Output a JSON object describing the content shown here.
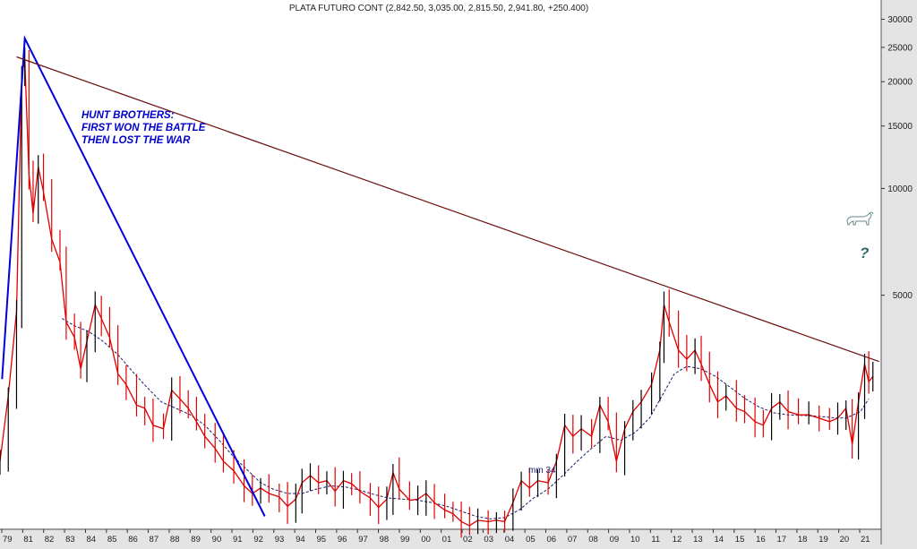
{
  "chart_data": {
    "type": "line",
    "title": "PLATA FUTURO CONT (2,842.50, 3,035.00, 2,815.50, 2,941.80, +250.400)",
    "scale": "log",
    "grid": false,
    "ylim": [
      1100,
      34000
    ],
    "y_ticks": [
      5000,
      10000,
      15000,
      20000,
      25000,
      30000
    ],
    "y_tick_labels": [
      "5000",
      "10000",
      "15000",
      "20000",
      "25000",
      "30000"
    ],
    "x_tick_labels": [
      "79",
      "81",
      "82",
      "83",
      "84",
      "85",
      "86",
      "87",
      "88",
      "89",
      "90",
      "91",
      "92",
      "93",
      "94",
      "95",
      "96",
      "97",
      "98",
      "99",
      "00",
      "01",
      "02",
      "03",
      "04",
      "05",
      "06",
      "07",
      "08",
      "09",
      "10",
      "11",
      "12",
      "13",
      "14",
      "15",
      "16",
      "17",
      "18",
      "19",
      "20",
      "21"
    ],
    "x_range": [
      1979.0,
      2021.6
    ],
    "series": [
      {
        "role": "price",
        "color": "#e00000",
        "points": [
          [
            1979.0,
            1700
          ],
          [
            1979.4,
            2600
          ],
          [
            1979.8,
            4500
          ],
          [
            1980.05,
            21000
          ],
          [
            1980.2,
            23000
          ],
          [
            1980.4,
            11000
          ],
          [
            1980.6,
            8500
          ],
          [
            1980.85,
            11500
          ],
          [
            1981.1,
            9800
          ],
          [
            1981.5,
            7200
          ],
          [
            1981.9,
            6200
          ],
          [
            1982.2,
            4200
          ],
          [
            1982.6,
            3800
          ],
          [
            1982.9,
            3100
          ],
          [
            1983.2,
            3700
          ],
          [
            1983.6,
            4700
          ],
          [
            1983.9,
            4300
          ],
          [
            1984.3,
            3800
          ],
          [
            1984.7,
            3000
          ],
          [
            1985.1,
            2800
          ],
          [
            1985.6,
            2450
          ],
          [
            1986.0,
            2400
          ],
          [
            1986.4,
            2150
          ],
          [
            1986.9,
            2100
          ],
          [
            1987.3,
            2700
          ],
          [
            1987.7,
            2550
          ],
          [
            1988.1,
            2400
          ],
          [
            1988.5,
            2200
          ],
          [
            1988.9,
            2000
          ],
          [
            1989.4,
            1850
          ],
          [
            1989.8,
            1700
          ],
          [
            1990.3,
            1600
          ],
          [
            1990.8,
            1450
          ],
          [
            1991.2,
            1380
          ],
          [
            1991.6,
            1430
          ],
          [
            1992.0,
            1380
          ],
          [
            1992.5,
            1350
          ],
          [
            1992.9,
            1270
          ],
          [
            1993.3,
            1330
          ],
          [
            1993.6,
            1480
          ],
          [
            1994.0,
            1550
          ],
          [
            1994.4,
            1480
          ],
          [
            1994.8,
            1500
          ],
          [
            1995.2,
            1400
          ],
          [
            1995.6,
            1500
          ],
          [
            1996.0,
            1470
          ],
          [
            1996.4,
            1400
          ],
          [
            1996.9,
            1340
          ],
          [
            1997.3,
            1260
          ],
          [
            1997.7,
            1330
          ],
          [
            1998.0,
            1580
          ],
          [
            1998.3,
            1420
          ],
          [
            1998.8,
            1320
          ],
          [
            1999.2,
            1330
          ],
          [
            1999.6,
            1380
          ],
          [
            2000.0,
            1300
          ],
          [
            2000.5,
            1240
          ],
          [
            2000.9,
            1210
          ],
          [
            2001.3,
            1150
          ],
          [
            2001.7,
            1120
          ],
          [
            2002.1,
            1160
          ],
          [
            2002.6,
            1150
          ],
          [
            2003.0,
            1160
          ],
          [
            2003.4,
            1150
          ],
          [
            2003.8,
            1300
          ],
          [
            2004.2,
            1500
          ],
          [
            2004.6,
            1430
          ],
          [
            2005.0,
            1500
          ],
          [
            2005.5,
            1480
          ],
          [
            2005.9,
            1700
          ],
          [
            2006.3,
            2150
          ],
          [
            2006.7,
            2000
          ],
          [
            2007.1,
            2100
          ],
          [
            2007.6,
            2000
          ],
          [
            2008.0,
            2450
          ],
          [
            2008.4,
            2200
          ],
          [
            2008.8,
            1700
          ],
          [
            2009.2,
            2100
          ],
          [
            2009.6,
            2350
          ],
          [
            2010.0,
            2500
          ],
          [
            2010.5,
            2800
          ],
          [
            2010.9,
            3500
          ],
          [
            2011.1,
            4700
          ],
          [
            2011.35,
            4200
          ],
          [
            2011.8,
            3500
          ],
          [
            2012.2,
            3300
          ],
          [
            2012.6,
            3500
          ],
          [
            2012.9,
            3200
          ],
          [
            2013.3,
            2800
          ],
          [
            2013.7,
            2500
          ],
          [
            2014.1,
            2600
          ],
          [
            2014.6,
            2400
          ],
          [
            2015.0,
            2350
          ],
          [
            2015.5,
            2200
          ],
          [
            2015.9,
            2150
          ],
          [
            2016.3,
            2400
          ],
          [
            2016.7,
            2500
          ],
          [
            2017.1,
            2350
          ],
          [
            2017.6,
            2300
          ],
          [
            2018.1,
            2300
          ],
          [
            2018.6,
            2250
          ],
          [
            2019.1,
            2200
          ],
          [
            2019.5,
            2250
          ],
          [
            2019.9,
            2400
          ],
          [
            2020.2,
            1900
          ],
          [
            2020.5,
            2500
          ],
          [
            2020.8,
            3200
          ],
          [
            2021.0,
            2850
          ],
          [
            2021.2,
            2950
          ]
        ]
      },
      {
        "role": "moving-average",
        "name": "mm 34",
        "color": "#1a1a6e",
        "points": [
          [
            1982.0,
            4300
          ],
          [
            1982.6,
            4100
          ],
          [
            1983.3,
            3950
          ],
          [
            1984.0,
            3700
          ],
          [
            1984.7,
            3400
          ],
          [
            1985.4,
            3050
          ],
          [
            1986.1,
            2750
          ],
          [
            1986.8,
            2500
          ],
          [
            1987.5,
            2400
          ],
          [
            1988.2,
            2300
          ],
          [
            1988.9,
            2150
          ],
          [
            1989.6,
            1950
          ],
          [
            1990.3,
            1750
          ],
          [
            1991.0,
            1600
          ],
          [
            1991.6,
            1480
          ],
          [
            1992.2,
            1420
          ],
          [
            1992.9,
            1380
          ],
          [
            1993.6,
            1380
          ],
          [
            1994.3,
            1420
          ],
          [
            1995.0,
            1450
          ],
          [
            1995.7,
            1440
          ],
          [
            1996.4,
            1410
          ],
          [
            1997.1,
            1370
          ],
          [
            1997.8,
            1340
          ],
          [
            1998.5,
            1330
          ],
          [
            1999.2,
            1320
          ],
          [
            1999.9,
            1300
          ],
          [
            2000.6,
            1270
          ],
          [
            2001.3,
            1230
          ],
          [
            2002.0,
            1190
          ],
          [
            2002.7,
            1170
          ],
          [
            2003.4,
            1180
          ],
          [
            2004.1,
            1240
          ],
          [
            2004.8,
            1340
          ],
          [
            2005.5,
            1420
          ],
          [
            2006.2,
            1550
          ],
          [
            2006.9,
            1700
          ],
          [
            2007.6,
            1850
          ],
          [
            2008.3,
            2000
          ],
          [
            2009.0,
            1950
          ],
          [
            2009.7,
            2050
          ],
          [
            2010.4,
            2250
          ],
          [
            2011.0,
            2600
          ],
          [
            2011.6,
            3000
          ],
          [
            2012.2,
            3150
          ],
          [
            2012.9,
            3100
          ],
          [
            2013.6,
            2950
          ],
          [
            2014.3,
            2750
          ],
          [
            2015.0,
            2560
          ],
          [
            2015.7,
            2420
          ],
          [
            2016.4,
            2330
          ],
          [
            2017.1,
            2300
          ],
          [
            2017.8,
            2290
          ],
          [
            2018.5,
            2280
          ],
          [
            2019.2,
            2260
          ],
          [
            2019.9,
            2250
          ],
          [
            2020.6,
            2350
          ],
          [
            2021.0,
            2550
          ]
        ]
      }
    ],
    "trendlines": [
      {
        "color": "#0000dd",
        "points": [
          [
            1979.1,
            2900
          ],
          [
            1980.2,
            26500
          ],
          [
            1991.8,
            1190
          ]
        ]
      },
      {
        "color": "#6b0e0e",
        "points": [
          [
            1979.8,
            23500
          ],
          [
            2021.5,
            3250
          ]
        ]
      }
    ],
    "annotations": [
      {
        "lines": [
          "HUNT BROTHERS:",
          "FIRST WON THE BATTLE",
          "THEN LOST THE WAR"
        ],
        "color": "#0000cc",
        "italic": true
      },
      {
        "text": "mm 34",
        "color": "#1a1a6e"
      },
      {
        "text": "?",
        "color": "#2a6a6a"
      },
      {
        "icon": "bull-icon"
      }
    ]
  }
}
